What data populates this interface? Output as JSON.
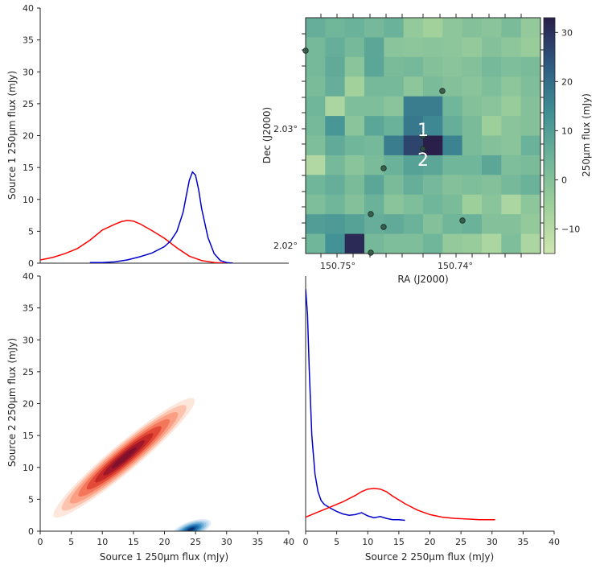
{
  "chart_data": [
    {
      "panel": "top-left",
      "type": "line",
      "ylabel": "Source 1 250µm flux  (mJy)",
      "ylim": [
        0,
        40
      ],
      "yticks": [
        0,
        5,
        10,
        15,
        20,
        25,
        30,
        35,
        40
      ],
      "series": [
        {
          "color": "#ff0000",
          "x": [
            0,
            2,
            4,
            6,
            8,
            10,
            12,
            13,
            14,
            15,
            16,
            18,
            20,
            22,
            24,
            26,
            28,
            30,
            31
          ],
          "y": [
            0.5,
            0.9,
            1.5,
            2.3,
            3.6,
            5.2,
            6.1,
            6.5,
            6.7,
            6.6,
            6.2,
            5.1,
            3.9,
            2.4,
            1.1,
            0.4,
            0.1,
            0.0,
            0.0
          ]
        },
        {
          "color": "#0000cc",
          "x": [
            8,
            10,
            12,
            14,
            16,
            18,
            20,
            21,
            22,
            23,
            23.5,
            24,
            24.5,
            25,
            25.5,
            26,
            27,
            28,
            29,
            30,
            31
          ],
          "y": [
            0.1,
            0.1,
            0.2,
            0.5,
            1.0,
            1.6,
            2.6,
            3.5,
            5.0,
            8.0,
            10.5,
            13.0,
            14.3,
            13.8,
            11.5,
            8.5,
            4.0,
            1.5,
            0.4,
            0.1,
            0.0
          ]
        }
      ]
    },
    {
      "panel": "top-right",
      "type": "heatmap",
      "xlabel": "RA (J2000)",
      "ylabel": "Dec (J2000)",
      "xtick_labels": [
        "150.75°",
        "150.74°"
      ],
      "ytick_labels": [
        "2.03°",
        "2.02°"
      ],
      "colorbar_label": "250µm flux  (mJy)",
      "colorbar_range": [
        -15,
        33
      ],
      "colorbar_ticks": [
        -10,
        0,
        10,
        20,
        30
      ],
      "grid": [
        [
          6,
          4,
          5,
          3,
          5,
          -3,
          -6,
          -2,
          0,
          -1,
          2,
          -3
        ],
        [
          3,
          6,
          3,
          8,
          -1,
          -2,
          -1,
          -2,
          -3,
          0,
          -2,
          -4
        ],
        [
          3,
          7,
          -1,
          8,
          2,
          3,
          0,
          -1,
          0,
          3,
          1,
          2
        ],
        [
          2,
          6,
          -6,
          3,
          3,
          -2,
          2,
          0,
          -1,
          1,
          -2,
          1
        ],
        [
          4,
          -8,
          1,
          1,
          -1,
          17,
          17,
          4,
          0,
          -1,
          -4,
          0
        ],
        [
          3,
          12,
          -1,
          8,
          5,
          18,
          15,
          6,
          2,
          -5,
          -1,
          0
        ],
        [
          1,
          7,
          4,
          3,
          17,
          27,
          33,
          16,
          2,
          0,
          -1,
          5
        ],
        [
          -9,
          3,
          -1,
          2,
          5,
          9,
          8,
          4,
          4,
          8,
          1,
          2
        ],
        [
          4,
          6,
          2,
          8,
          2,
          6,
          3,
          0,
          1,
          0,
          3,
          5
        ],
        [
          1,
          4,
          0,
          5,
          -1,
          1,
          4,
          2,
          -5,
          -1,
          -8,
          -2
        ],
        [
          10,
          11,
          9,
          6,
          7,
          5,
          0,
          4,
          5,
          0,
          0,
          -3
        ],
        [
          4,
          13,
          31,
          3,
          1,
          1,
          4,
          -3,
          -4,
          -8,
          1,
          -8
        ]
      ],
      "sources": [
        {
          "label": "1",
          "color": "#ffffff"
        },
        {
          "label": "2",
          "color": "#ffffff"
        }
      ]
    },
    {
      "panel": "bottom-left",
      "type": "area",
      "xlabel": "Source 1 250µm flux  (mJy)",
      "ylabel": "Source 2 250µm flux (mJy)",
      "xlim": [
        0,
        40
      ],
      "ylim": [
        0,
        40
      ],
      "ticks": [
        0,
        5,
        10,
        15,
        20,
        25,
        30,
        35,
        40
      ],
      "series": [
        {
          "palette": "reds",
          "center": [
            13.5,
            11.5
          ],
          "sd_major": 10.5,
          "sd_minor": 1.6,
          "angle": -40
        },
        {
          "palette": "blues",
          "center": [
            24.3,
            0.3
          ],
          "sd_major": 2.4,
          "sd_minor": 0.9,
          "angle": -20
        }
      ]
    },
    {
      "panel": "bottom-right",
      "type": "line",
      "xlabel": "Source 2 250µm flux (mJy)",
      "xlim": [
        0,
        40
      ],
      "xticks": [
        0,
        5,
        10,
        15,
        20,
        25,
        30,
        35,
        40
      ],
      "series": [
        {
          "color": "#0000cc",
          "x": [
            0.0,
            0.3,
            0.6,
            1.0,
            1.5,
            2.0,
            2.5,
            3.0,
            4.0,
            5.0,
            6.0,
            7.0,
            8.0,
            9.0,
            10.0,
            11.0,
            12.0,
            13.0,
            14.0,
            15.0,
            16.0
          ],
          "y": [
            38.0,
            34.0,
            25.0,
            15.0,
            9.0,
            6.2,
            4.8,
            4.2,
            3.6,
            3.1,
            2.7,
            2.5,
            2.6,
            2.9,
            2.4,
            2.1,
            2.3,
            2.0,
            1.8,
            1.8,
            1.7
          ]
        },
        {
          "color": "#ff0000",
          "x": [
            0,
            2,
            4,
            6,
            8,
            9,
            10,
            11,
            12,
            13,
            14,
            16,
            18,
            20,
            22,
            24,
            26,
            28,
            30.5
          ],
          "y": [
            2.2,
            3.0,
            3.8,
            4.6,
            5.6,
            6.2,
            6.6,
            6.7,
            6.6,
            6.2,
            5.5,
            4.3,
            3.3,
            2.6,
            2.2,
            2.0,
            1.9,
            1.8,
            1.8
          ]
        }
      ]
    }
  ]
}
